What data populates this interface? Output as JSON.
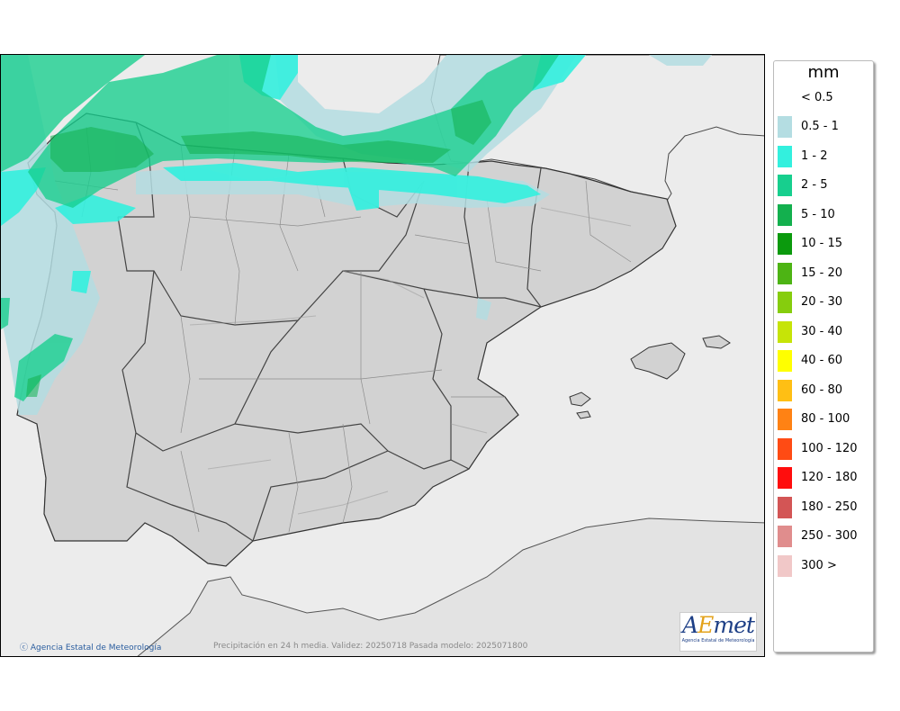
{
  "legend": {
    "title": "mm",
    "items": [
      {
        "label": "< 0.5",
        "color": "#ffffff"
      },
      {
        "label": "0.5 - 1",
        "color": "#b4dde2"
      },
      {
        "label": "1 - 2",
        "color": "#33f0de"
      },
      {
        "label": "2 - 5",
        "color": "#17cf8e"
      },
      {
        "label": "5 - 10",
        "color": "#13b04e"
      },
      {
        "label": "10 - 15",
        "color": "#0b9a0d"
      },
      {
        "label": "15 - 20",
        "color": "#4db414"
      },
      {
        "label": "20 - 30",
        "color": "#86cd0d"
      },
      {
        "label": "30 - 40",
        "color": "#c6e407"
      },
      {
        "label": "40 - 60",
        "color": "#ffff00"
      },
      {
        "label": "60 - 80",
        "color": "#ffbf14"
      },
      {
        "label": "80 - 100",
        "color": "#ff8214"
      },
      {
        "label": "100 - 120",
        "color": "#ff4b14"
      },
      {
        "label": "120 - 180",
        "color": "#ff0d0d"
      },
      {
        "label": "180 - 250",
        "color": "#d35555"
      },
      {
        "label": "250 - 300",
        "color": "#e08d8d"
      },
      {
        "label": "300 >",
        "color": "#f1c8c8"
      }
    ]
  },
  "footer": {
    "copyright": "Agencia Estatal de Meteorología",
    "validity": "Precipitación en 24 h media. Validez: 20250718 Pasada modelo: 2025071800"
  },
  "logo": {
    "word_a": "A",
    "word_e": "E",
    "word_rest": "met",
    "subtitle": "Agencia Estatal de Meteorología"
  }
}
